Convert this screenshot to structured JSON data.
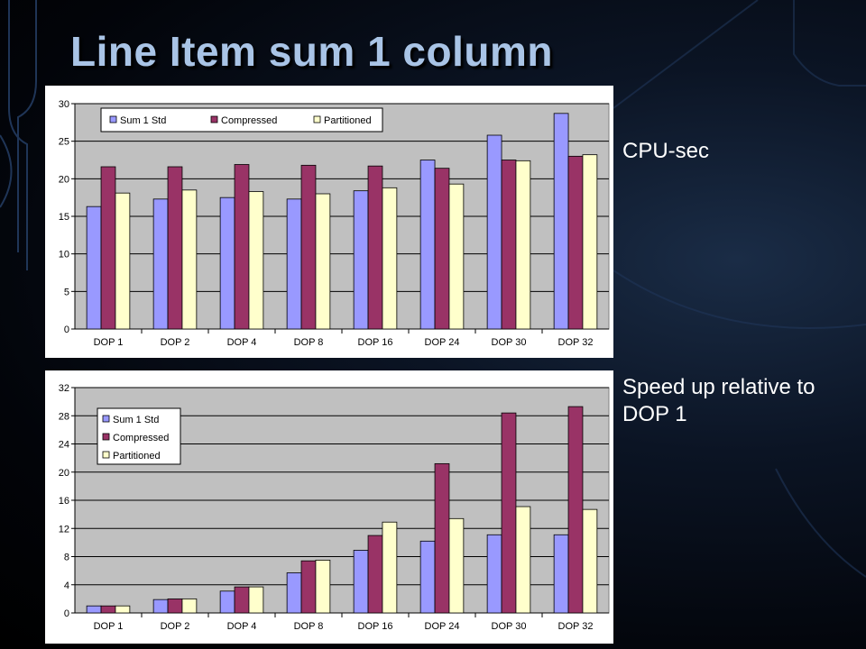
{
  "slide": {
    "title": "Line Item sum 1 column",
    "label_cpu": "CPU-sec",
    "label_speedup": "Speed up relative to DOP 1"
  },
  "colors": {
    "series": [
      "#9999ff",
      "#993366",
      "#ffffcc"
    ],
    "plot_bg": "#c0c0c0",
    "title": "#a9c4e6"
  },
  "chart_data": [
    {
      "type": "bar",
      "categories": [
        "DOP 1",
        "DOP 2",
        "DOP 4",
        "DOP 8",
        "DOP 16",
        "DOP 24",
        "DOP 30",
        "DOP 32"
      ],
      "series": [
        {
          "name": "Sum 1 Std",
          "values": [
            16.3,
            17.3,
            17.5,
            17.3,
            18.4,
            22.5,
            25.8,
            28.7
          ]
        },
        {
          "name": "Compressed",
          "values": [
            21.6,
            21.6,
            21.9,
            21.8,
            21.7,
            21.4,
            22.5,
            23.0
          ]
        },
        {
          "name": "Partitioned",
          "values": [
            18.1,
            18.5,
            18.3,
            18.0,
            18.8,
            19.3,
            22.4,
            23.2
          ]
        }
      ],
      "ylim": [
        0,
        30
      ],
      "yticks": [
        0,
        5,
        10,
        15,
        20,
        25,
        30
      ],
      "grid": true,
      "legend": "top-left, horizontal"
    },
    {
      "type": "bar",
      "categories": [
        "DOP 1",
        "DOP 2",
        "DOP 4",
        "DOP 8",
        "DOP 16",
        "DOP 24",
        "DOP 30",
        "DOP 32"
      ],
      "series": [
        {
          "name": "Sum 1 Std",
          "values": [
            1.0,
            1.9,
            3.1,
            5.7,
            8.9,
            10.2,
            11.1,
            11.1
          ]
        },
        {
          "name": "Compressed",
          "values": [
            1.0,
            2.0,
            3.7,
            7.4,
            11.0,
            21.2,
            28.4,
            29.3
          ]
        },
        {
          "name": "Partitioned",
          "values": [
            1.0,
            2.0,
            3.7,
            7.5,
            12.9,
            13.4,
            15.1,
            14.7
          ]
        }
      ],
      "ylim": [
        0,
        32
      ],
      "yticks": [
        0,
        4,
        8,
        12,
        16,
        20,
        24,
        28,
        32
      ],
      "grid": true,
      "legend": "top-left, vertical"
    }
  ]
}
